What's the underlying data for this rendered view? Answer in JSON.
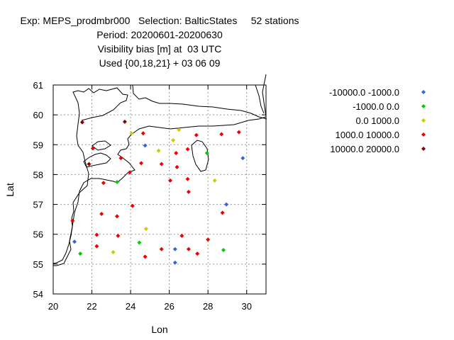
{
  "header": {
    "line1": "Exp: MEPS_prodmbr000   Selection: BalticStates     52 stations",
    "line2": "Period: 20200601-20200630",
    "line3": "Visibility bias [m] at  03 UTC",
    "line4": "Used {00,18,21} + 03 06 09"
  },
  "chart_data": {
    "type": "scatter",
    "xlabel": "Lon",
    "ylabel": "Lat",
    "xlim": [
      20,
      31
    ],
    "ylim": [
      54,
      61
    ],
    "xticks": [
      20,
      22,
      24,
      26,
      28,
      30
    ],
    "yticks": [
      54,
      55,
      56,
      57,
      58,
      59,
      60,
      61
    ],
    "grid": true,
    "legend_position": "right",
    "series": [
      {
        "name": "-10000.0 -1000.0",
        "color": "#3366dd",
        "points": [
          [
            21.1,
            55.75
          ],
          [
            24.75,
            58.97
          ],
          [
            26.3,
            55.5
          ],
          [
            26.3,
            55.05
          ],
          [
            28.95,
            57.0
          ],
          [
            29.8,
            58.55
          ]
        ]
      },
      {
        "name": "-1000.0 0.0",
        "color": "#00cc00",
        "points": [
          [
            21.4,
            55.35
          ],
          [
            23.3,
            57.75
          ],
          [
            24.45,
            55.72
          ],
          [
            27.95,
            58.72
          ],
          [
            28.8,
            55.47
          ]
        ]
      },
      {
        "name": "0.0 1000.0",
        "color": "#cccc00",
        "points": [
          [
            23.1,
            55.4
          ],
          [
            24.05,
            59.38
          ],
          [
            24.8,
            56.18
          ],
          [
            25.45,
            58.8
          ],
          [
            26.2,
            59.15
          ],
          [
            26.5,
            59.5
          ],
          [
            28.35,
            57.8
          ]
        ]
      },
      {
        "name": "1000.0 10000.0",
        "color": "#ee0000",
        "points": [
          [
            21.0,
            56.45
          ],
          [
            22.05,
            58.88
          ],
          [
            22.25,
            55.98
          ],
          [
            22.25,
            55.6
          ],
          [
            22.5,
            56.68
          ],
          [
            22.6,
            57.72
          ],
          [
            23.3,
            56.6
          ],
          [
            23.35,
            55.95
          ],
          [
            23.5,
            58.55
          ],
          [
            23.95,
            58.07
          ],
          [
            24.1,
            56.95
          ],
          [
            24.55,
            58.38
          ],
          [
            24.65,
            59.38
          ],
          [
            24.75,
            55.25
          ],
          [
            25.6,
            55.5
          ],
          [
            25.6,
            58.35
          ],
          [
            26.05,
            57.8
          ],
          [
            26.35,
            58.72
          ],
          [
            26.4,
            58.25
          ],
          [
            26.65,
            55.95
          ],
          [
            26.95,
            58.85
          ],
          [
            26.95,
            57.85
          ],
          [
            27.0,
            57.42
          ],
          [
            27.0,
            55.5
          ],
          [
            27.4,
            59.32
          ],
          [
            27.45,
            55.35
          ],
          [
            28.0,
            55.82
          ],
          [
            28.7,
            59.35
          ],
          [
            28.75,
            56.72
          ],
          [
            29.6,
            59.42
          ]
        ]
      },
      {
        "name": "10000.0 20000.0",
        "color": "#880000",
        "points": [
          [
            21.5,
            59.75
          ],
          [
            21.85,
            58.35
          ],
          [
            23.7,
            59.77
          ]
        ]
      }
    ]
  }
}
